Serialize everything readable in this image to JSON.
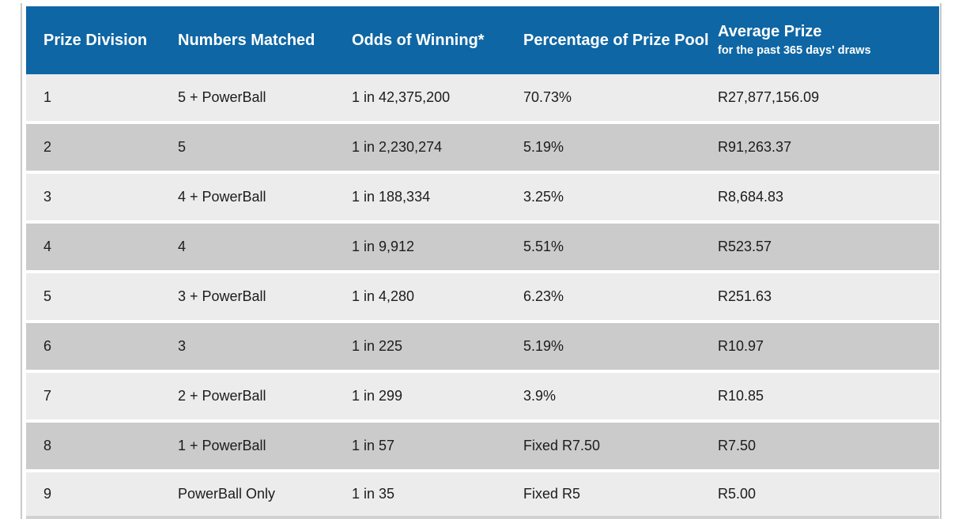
{
  "table": {
    "header": {
      "col1": "Prize Division",
      "col2": "Numbers Matched",
      "col3": "Odds of Winning*",
      "col4": "Percentage of Prize Pool",
      "col5": "Average Prize",
      "col5_sub": "for the past 365 days' draws"
    },
    "rows": [
      {
        "division": "1",
        "matched": "5 + PowerBall",
        "odds": "1 in 42,375,200",
        "pool": "70.73%",
        "avg": "R27,877,156.09"
      },
      {
        "division": "2",
        "matched": "5",
        "odds": "1 in 2,230,274",
        "pool": "5.19%",
        "avg": "R91,263.37"
      },
      {
        "division": "3",
        "matched": "4 + PowerBall",
        "odds": "1 in 188,334",
        "pool": "3.25%",
        "avg": "R8,684.83"
      },
      {
        "division": "4",
        "matched": "4",
        "odds": "1 in 9,912",
        "pool": "5.51%",
        "avg": "R523.57"
      },
      {
        "division": "5",
        "matched": "3 + PowerBall",
        "odds": "1 in 4,280",
        "pool": "6.23%",
        "avg": "R251.63"
      },
      {
        "division": "6",
        "matched": "3",
        "odds": "1 in 225",
        "pool": "5.19%",
        "avg": "R10.97"
      },
      {
        "division": "7",
        "matched": "2 + PowerBall",
        "odds": "1 in 299",
        "pool": "3.9%",
        "avg": "R10.85"
      },
      {
        "division": "8",
        "matched": "1 + PowerBall",
        "odds": "1 in 57",
        "pool": "Fixed R7.50",
        "avg": "R7.50"
      },
      {
        "division": "9",
        "matched": "PowerBall Only",
        "odds": "1 in 35",
        "pool": "Fixed R5",
        "avg": "R5.00"
      }
    ]
  },
  "colors": {
    "header_bg": "#0e66a4",
    "header_text": "#ffffff",
    "row_light": "#ececec",
    "row_dark": "#cbcbcb",
    "body_text": "#1c1c1c",
    "border_line": "#c9c9c9"
  }
}
